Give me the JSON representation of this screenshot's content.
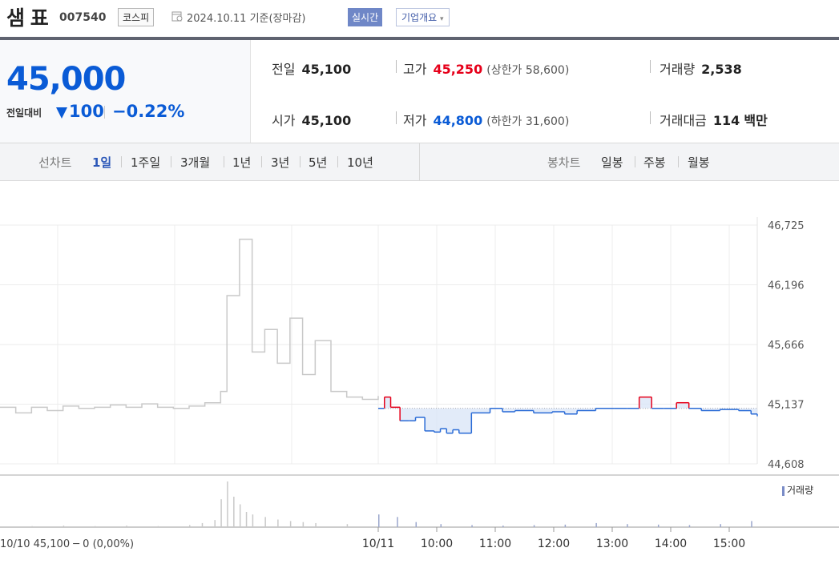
{
  "header": {
    "name": "샘 표",
    "code": "007540",
    "market": "코스피",
    "date": "2024.10.11 기준(장마감)",
    "realtime": "실시간",
    "corp_button": "기업개요"
  },
  "price": {
    "current": "45,000",
    "change_label": "전일대비",
    "change": "100",
    "change_pct": "−0.22%"
  },
  "stats": {
    "prev_close": {
      "label": "전일",
      "value": "45,100"
    },
    "high": {
      "label": "고가",
      "value": "45,250",
      "sub": "(상한가 58,600)"
    },
    "volume": {
      "label": "거래량",
      "value": "2,538"
    },
    "open": {
      "label": "시가",
      "value": "45,100"
    },
    "low": {
      "label": "저가",
      "value": "44,800",
      "sub": "(하한가 31,600)"
    },
    "amount": {
      "label": "거래대금",
      "value": "114",
      "unit": "백만"
    }
  },
  "tabs": {
    "line_label": "선차트",
    "line": [
      "1일",
      "1주일",
      "3개월",
      "1년",
      "3년",
      "5년",
      "10년"
    ],
    "candle_label": "봉차트",
    "candle": [
      "일봉",
      "주봉",
      "월봉"
    ]
  },
  "legend": {
    "volume": "거래량"
  },
  "colors": {
    "up": "#e6001a",
    "down": "#2a6bd6",
    "prev": "#c9c9c9"
  },
  "chart_data": {
    "type": "line",
    "y_ticks": [
      "46,725",
      "46,196",
      "45,666",
      "45,137",
      "44,608"
    ],
    "ylim": [
      44608,
      46725
    ],
    "x_ticks": [
      "10/11",
      "10:00",
      "11:00",
      "12:00",
      "13:00",
      "14:00",
      "15:00"
    ],
    "reference": 45100,
    "prev_day_label": "10/10 45,100 ─ 0 (0,00%)",
    "prev_day": {
      "x": [
        0,
        0.25,
        0.5,
        0.75,
        1,
        1.25,
        1.5,
        1.75,
        2,
        2.25,
        2.5,
        2.75,
        3,
        3.25,
        3.5,
        3.6,
        3.8,
        4,
        4.2,
        4.4,
        4.6,
        4.8,
        5,
        5.25,
        5.5,
        5.75,
        6
      ],
      "y": [
        45110,
        45060,
        45110,
        45080,
        45120,
        45100,
        45110,
        45130,
        45110,
        45140,
        45110,
        45100,
        45120,
        45150,
        45250,
        46100,
        46600,
        45600,
        45800,
        45500,
        45900,
        45400,
        45700,
        45250,
        45200,
        45180,
        45210
      ]
    },
    "today": {
      "x": [
        0,
        0.1,
        0.2,
        0.35,
        0.5,
        0.6,
        0.75,
        0.9,
        1,
        1.1,
        1.2,
        1.3,
        1.5,
        1.8,
        2,
        2.2,
        2.5,
        2.8,
        3,
        3.2,
        3.5,
        3.8,
        4,
        4.2,
        4.4,
        4.6,
        4.8,
        5,
        5.2,
        5.5,
        5.8,
        6,
        6.1
      ],
      "y": [
        45100,
        45200,
        45110,
        44990,
        44990,
        45020,
        44900,
        44890,
        44920,
        44880,
        44910,
        44880,
        45060,
        45100,
        45070,
        45080,
        45060,
        45070,
        45050,
        45080,
        45100,
        45100,
        45100,
        45200,
        45100,
        45100,
        45150,
        45100,
        45080,
        45090,
        45080,
        45050,
        45030
      ]
    },
    "volume": {
      "x_prev": [
        0.5,
        1,
        1.5,
        2,
        2.5,
        3,
        3.2,
        3.4,
        3.5,
        3.6,
        3.7,
        3.8,
        3.9,
        4,
        4.2,
        4.4,
        4.6,
        4.8,
        5,
        5.5
      ],
      "v_prev": [
        2,
        3,
        2,
        3,
        2,
        4,
        8,
        14,
        55,
        90,
        60,
        45,
        30,
        25,
        20,
        15,
        12,
        10,
        8,
        6
      ],
      "x_today": [
        0,
        0.3,
        0.6,
        1,
        1.5,
        2,
        2.5,
        3,
        3.5,
        4,
        4.5,
        5,
        5.5,
        6
      ],
      "v_today": [
        25,
        20,
        10,
        6,
        4,
        3,
        4,
        5,
        8,
        6,
        5,
        4,
        6,
        12
      ]
    }
  }
}
